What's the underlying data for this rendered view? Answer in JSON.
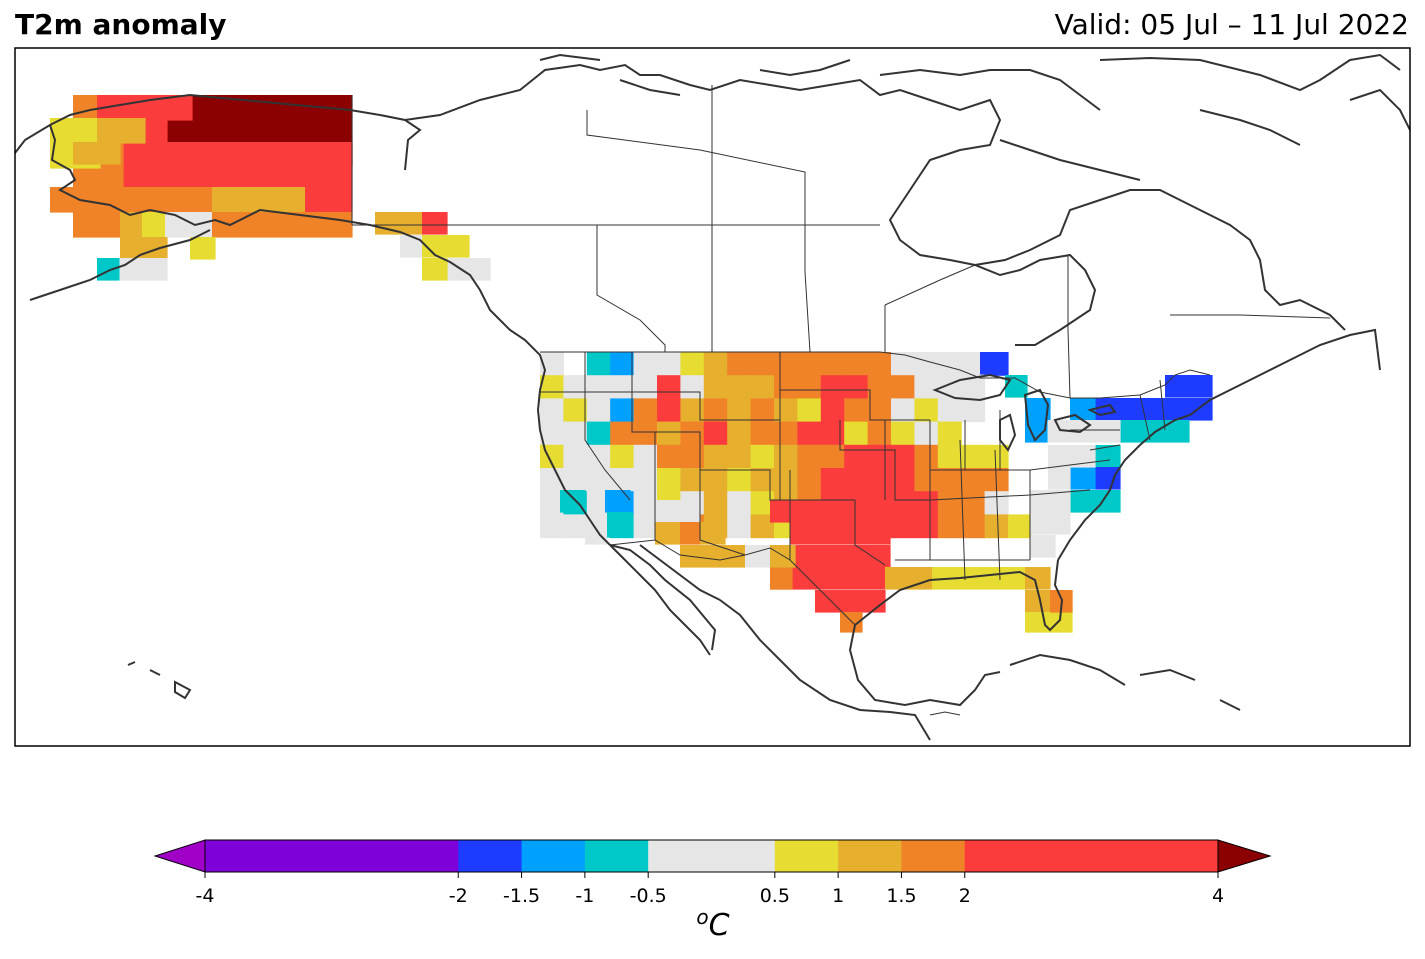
{
  "header": {
    "title": "T2m anomaly",
    "valid": "Valid: 05 Jul – 11 Jul 2022"
  },
  "colorbar": {
    "unit_base": "C",
    "unit_sup": "o",
    "ticks": [
      {
        "v": -4,
        "label": "-4"
      },
      {
        "v": -2,
        "label": "-2"
      },
      {
        "v": -1.5,
        "label": "-1.5"
      },
      {
        "v": -1,
        "label": "-1"
      },
      {
        "v": -0.5,
        "label": "-0.5"
      },
      {
        "v": 0.5,
        "label": "0.5"
      },
      {
        "v": 1,
        "label": "1"
      },
      {
        "v": 1.5,
        "label": "1.5"
      },
      {
        "v": 2,
        "label": "2"
      },
      {
        "v": 4,
        "label": "4"
      }
    ],
    "bins": [
      {
        "from": -4,
        "to": -2,
        "color": "#7f00d9"
      },
      {
        "from": -2,
        "to": -1.5,
        "color": "#1e3cff"
      },
      {
        "from": -1.5,
        "to": -1,
        "color": "#00a0ff"
      },
      {
        "from": -1,
        "to": -0.5,
        "color": "#00c8c8"
      },
      {
        "from": -0.5,
        "to": 0.5,
        "color": "#e6e6e6"
      },
      {
        "from": 0.5,
        "to": 1,
        "color": "#e6dc32"
      },
      {
        "from": 1,
        "to": 1.5,
        "color": "#e6af2d"
      },
      {
        "from": 1.5,
        "to": 2,
        "color": "#f08228"
      },
      {
        "from": 2,
        "to": 4,
        "color": "#fa3c3c"
      }
    ],
    "under_color": "#a000c8",
    "over_color": "#8b0000"
  },
  "map": {
    "region": "North America",
    "frame_color": "#000000",
    "coastline_color": "#333333"
  }
}
